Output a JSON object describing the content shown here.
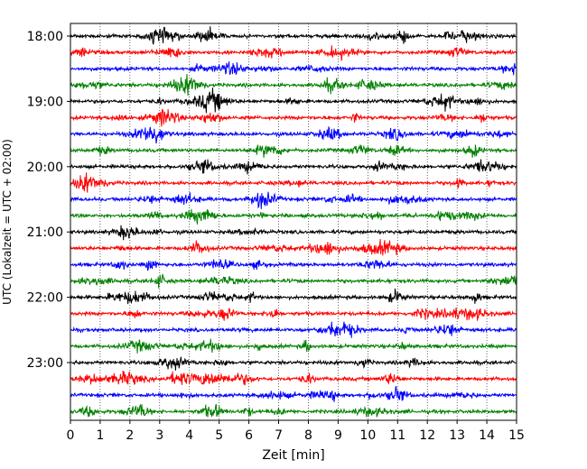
{
  "chart_data": {
    "type": "line",
    "title": "",
    "xlabel": "Zeit  [min]",
    "ylabel": "UTC (Lokalzeit = UTC + 02:00)",
    "xlim": [
      0,
      15
    ],
    "x_ticks": [
      "0",
      "1",
      "2",
      "3",
      "4",
      "5",
      "6",
      "7",
      "8",
      "9",
      "10",
      "11",
      "12",
      "13",
      "14",
      "15"
    ],
    "y_tick_labels": [
      "18:00",
      "19:00",
      "20:00",
      "21:00",
      "22:00",
      "23:00"
    ],
    "grid": "vertical dotted",
    "trace_interval_min": 15,
    "start_time": "18:00",
    "trace_colors": [
      "#000000",
      "#ff0000",
      "#0000ff",
      "#008000"
    ],
    "series": [
      {
        "start": "18:00",
        "color": "#000000"
      },
      {
        "start": "18:15",
        "color": "#ff0000"
      },
      {
        "start": "18:30",
        "color": "#0000ff"
      },
      {
        "start": "18:45",
        "color": "#008000"
      },
      {
        "start": "19:00",
        "color": "#000000"
      },
      {
        "start": "19:15",
        "color": "#ff0000"
      },
      {
        "start": "19:30",
        "color": "#0000ff"
      },
      {
        "start": "19:45",
        "color": "#008000"
      },
      {
        "start": "20:00",
        "color": "#000000"
      },
      {
        "start": "20:15",
        "color": "#ff0000"
      },
      {
        "start": "20:30",
        "color": "#0000ff"
      },
      {
        "start": "20:45",
        "color": "#008000"
      },
      {
        "start": "21:00",
        "color": "#000000"
      },
      {
        "start": "21:15",
        "color": "#ff0000"
      },
      {
        "start": "21:30",
        "color": "#0000ff"
      },
      {
        "start": "21:45",
        "color": "#008000"
      },
      {
        "start": "22:00",
        "color": "#000000"
      },
      {
        "start": "22:15",
        "color": "#ff0000"
      },
      {
        "start": "22:30",
        "color": "#0000ff"
      },
      {
        "start": "22:45",
        "color": "#008000"
      },
      {
        "start": "23:00",
        "color": "#000000"
      },
      {
        "start": "23:15",
        "color": "#ff0000"
      },
      {
        "start": "23:30",
        "color": "#0000ff"
      },
      {
        "start": "23:45",
        "color": "#008000"
      }
    ]
  }
}
